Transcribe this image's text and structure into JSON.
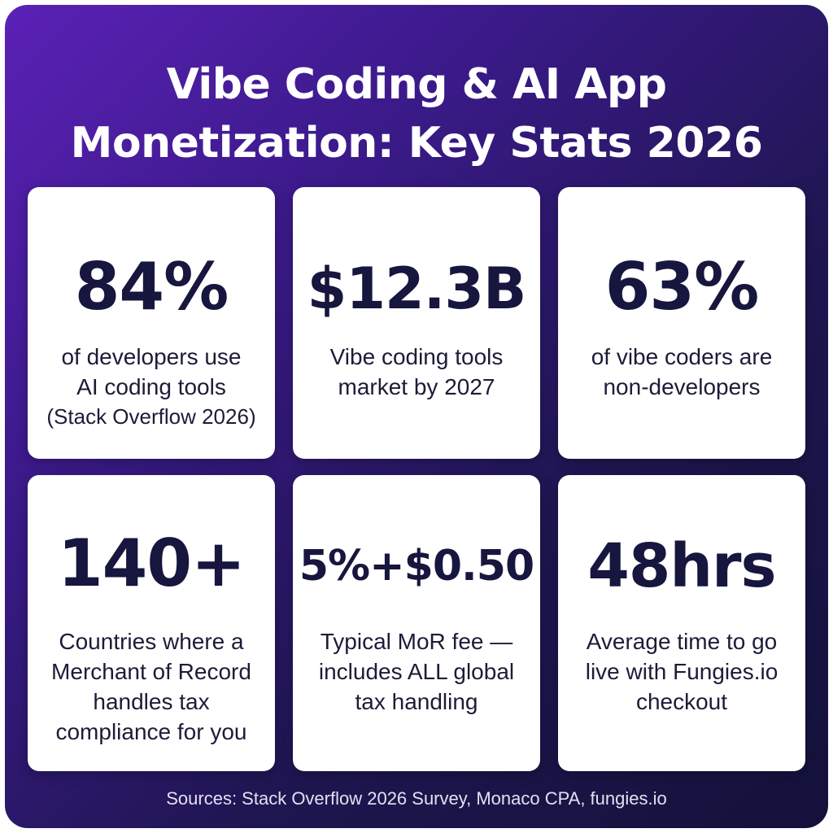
{
  "title": {
    "line1": "Vibe Coding & AI App",
    "line2": "Monetization: Key Stats 2026"
  },
  "cards": [
    {
      "stat": "84%",
      "desc": [
        "of developers use",
        "AI coding tools",
        "(Stack Overflow 2026)"
      ]
    },
    {
      "stat": "$12.3B",
      "desc": [
        "Vibe coding tools",
        "market by 2027"
      ]
    },
    {
      "stat": "63%",
      "desc": [
        "of vibe coders are",
        "non-developers"
      ]
    },
    {
      "stat": "140+",
      "desc": [
        "Countries where a",
        "Merchant of Record",
        "handles tax",
        "compliance for you"
      ]
    },
    {
      "stat": "5%+$0.50",
      "desc": [
        "Typical MoR fee —",
        "includes ALL global",
        "tax handling"
      ]
    },
    {
      "stat": "48hrs",
      "desc": [
        "Average time to go",
        "live with Fungies.io",
        "checkout"
      ]
    }
  ],
  "footer": {
    "sources": "Sources: Stack Overflow 2026 Survey, Monaco CPA, fungies.io"
  }
}
